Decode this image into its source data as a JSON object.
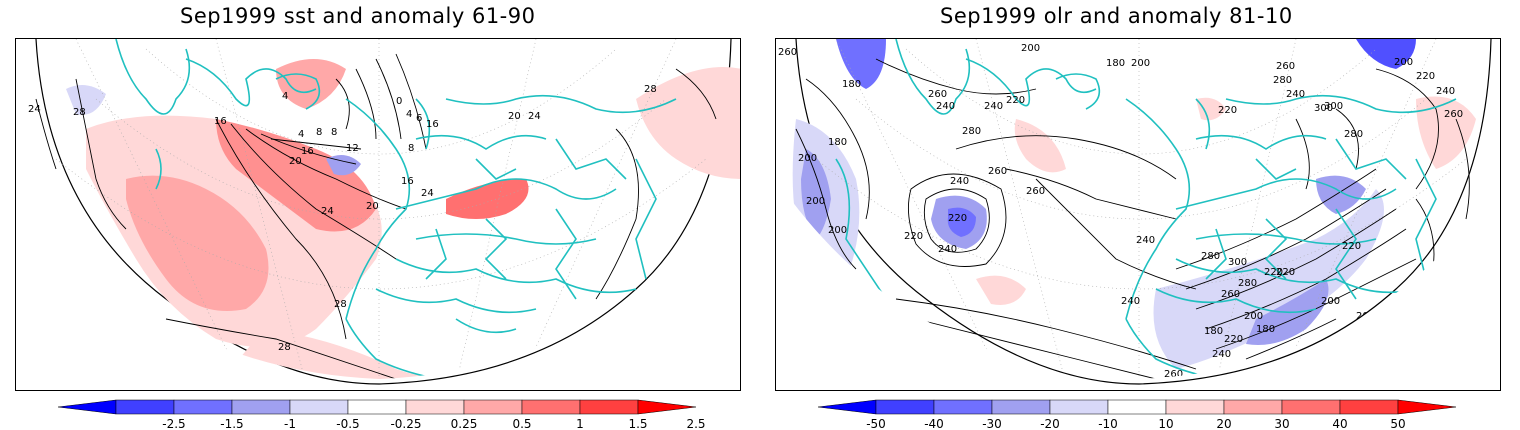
{
  "panels": [
    {
      "id": "sst",
      "title": "Sep1999 sst and anomaly 61-90",
      "contour_labels": [
        "0",
        "4",
        "6",
        "8",
        "4",
        "8",
        "12",
        "16",
        "16",
        "16",
        "20",
        "20",
        "24",
        "24",
        "24",
        "28",
        "28",
        "28",
        "28",
        "20",
        "24",
        "16",
        "8",
        "4"
      ],
      "colorbar": {
        "labels": [
          "-2.5",
          "-1.5",
          "-1",
          "-0.5",
          "-0.25",
          "0.25",
          "0.5",
          "1",
          "1.5",
          "2.5"
        ],
        "colors": [
          "#0000ff",
          "#4040ff",
          "#7070ff",
          "#a0a0f0",
          "#d8d8f8",
          "#ffffff",
          "#ffd8d8",
          "#ffa8a8",
          "#ff7070",
          "#ff4040",
          "#ff0000"
        ]
      }
    },
    {
      "id": "olr",
      "title": "Sep1999 olr and anomaly 81-10",
      "contour_labels": [
        "260",
        "180",
        "200",
        "180",
        "200",
        "240",
        "260",
        "280",
        "300",
        "240",
        "220",
        "200",
        "180",
        "220",
        "240",
        "260",
        "280",
        "200",
        "220",
        "240",
        "260",
        "280",
        "300",
        "260",
        "240",
        "220",
        "200",
        "180",
        "220",
        "240",
        "200",
        "260",
        "280",
        "300",
        "220",
        "240",
        "260",
        "280",
        "200",
        "220",
        "240",
        "180",
        "200",
        "220",
        "240",
        "260",
        "200",
        "220",
        "260"
      ],
      "colorbar": {
        "labels": [
          "-50",
          "-40",
          "-30",
          "-20",
          "-10",
          "10",
          "20",
          "30",
          "40",
          "50"
        ],
        "colors": [
          "#0000ff",
          "#4040ff",
          "#7070ff",
          "#a0a0f0",
          "#d8d8f8",
          "#ffffff",
          "#ffd8d8",
          "#ffa8a8",
          "#ff7070",
          "#ff4040",
          "#ff0000"
        ]
      }
    }
  ],
  "colors": {
    "coastline": "#20c0c0",
    "contour": "#000000",
    "grid": "#999999",
    "warm_light": "#ffd8d8",
    "warm_mid": "#ffa8a8",
    "warm_strong": "#ff7070",
    "cool_light": "#d8d8f8",
    "cool_mid": "#a0a0f0",
    "cool_strong": "#5050ff"
  }
}
